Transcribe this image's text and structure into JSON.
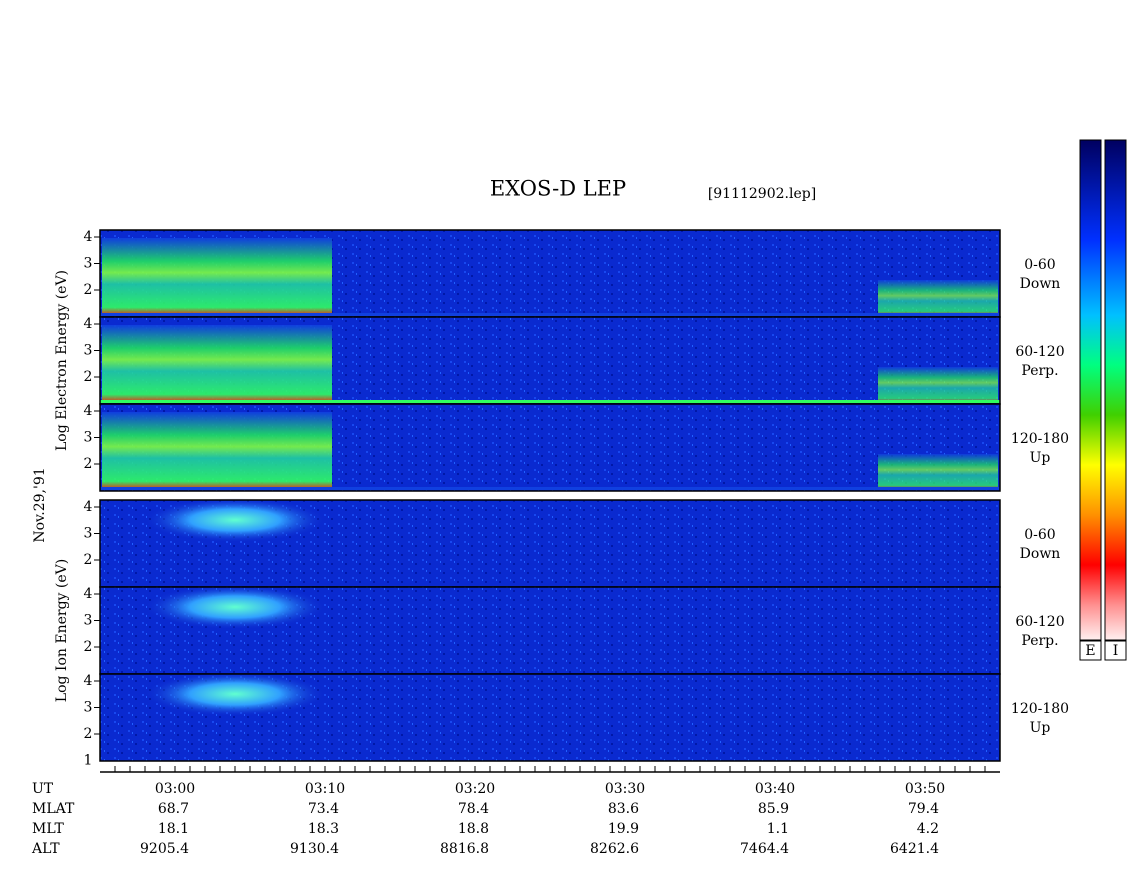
{
  "title": "EXOS-D LEP",
  "file": "[91112902.lep]",
  "date": "Nov.29,'91",
  "groups": [
    {
      "label": "Log Electron Energy (eV)",
      "yticks": [
        2,
        3,
        4
      ],
      "panels": [
        {
          "line1": "0-60",
          "line2": "Down"
        },
        {
          "line1": "60-120",
          "line2": "Perp."
        },
        {
          "line1": "120-180",
          "line2": "Up"
        }
      ]
    },
    {
      "label": "Log Ion Energy (eV)",
      "yticks": [
        2,
        3,
        4
      ],
      "panels": [
        {
          "line1": "0-60",
          "line2": "Down"
        },
        {
          "line1": "60-120",
          "line2": "Perp."
        },
        {
          "line1": "120-180",
          "line2": "Up",
          "extra_tick": 1
        }
      ]
    }
  ],
  "rows": [
    {
      "label": "UT",
      "values": [
        "03:00",
        "03:10",
        "03:20",
        "03:30",
        "03:40",
        "03:50"
      ]
    },
    {
      "label": "MLAT",
      "values": [
        68.7,
        73.4,
        78.4,
        83.6,
        85.9,
        79.4
      ]
    },
    {
      "label": "MLT",
      "values": [
        18.1,
        18.3,
        18.8,
        19.9,
        1.1,
        4.2
      ]
    },
    {
      "label": "ALT",
      "values": [
        9205.4,
        9130.4,
        8816.8,
        8262.6,
        7464.4,
        6421.4
      ]
    }
  ],
  "colorbars": [
    "E",
    "I"
  ]
}
